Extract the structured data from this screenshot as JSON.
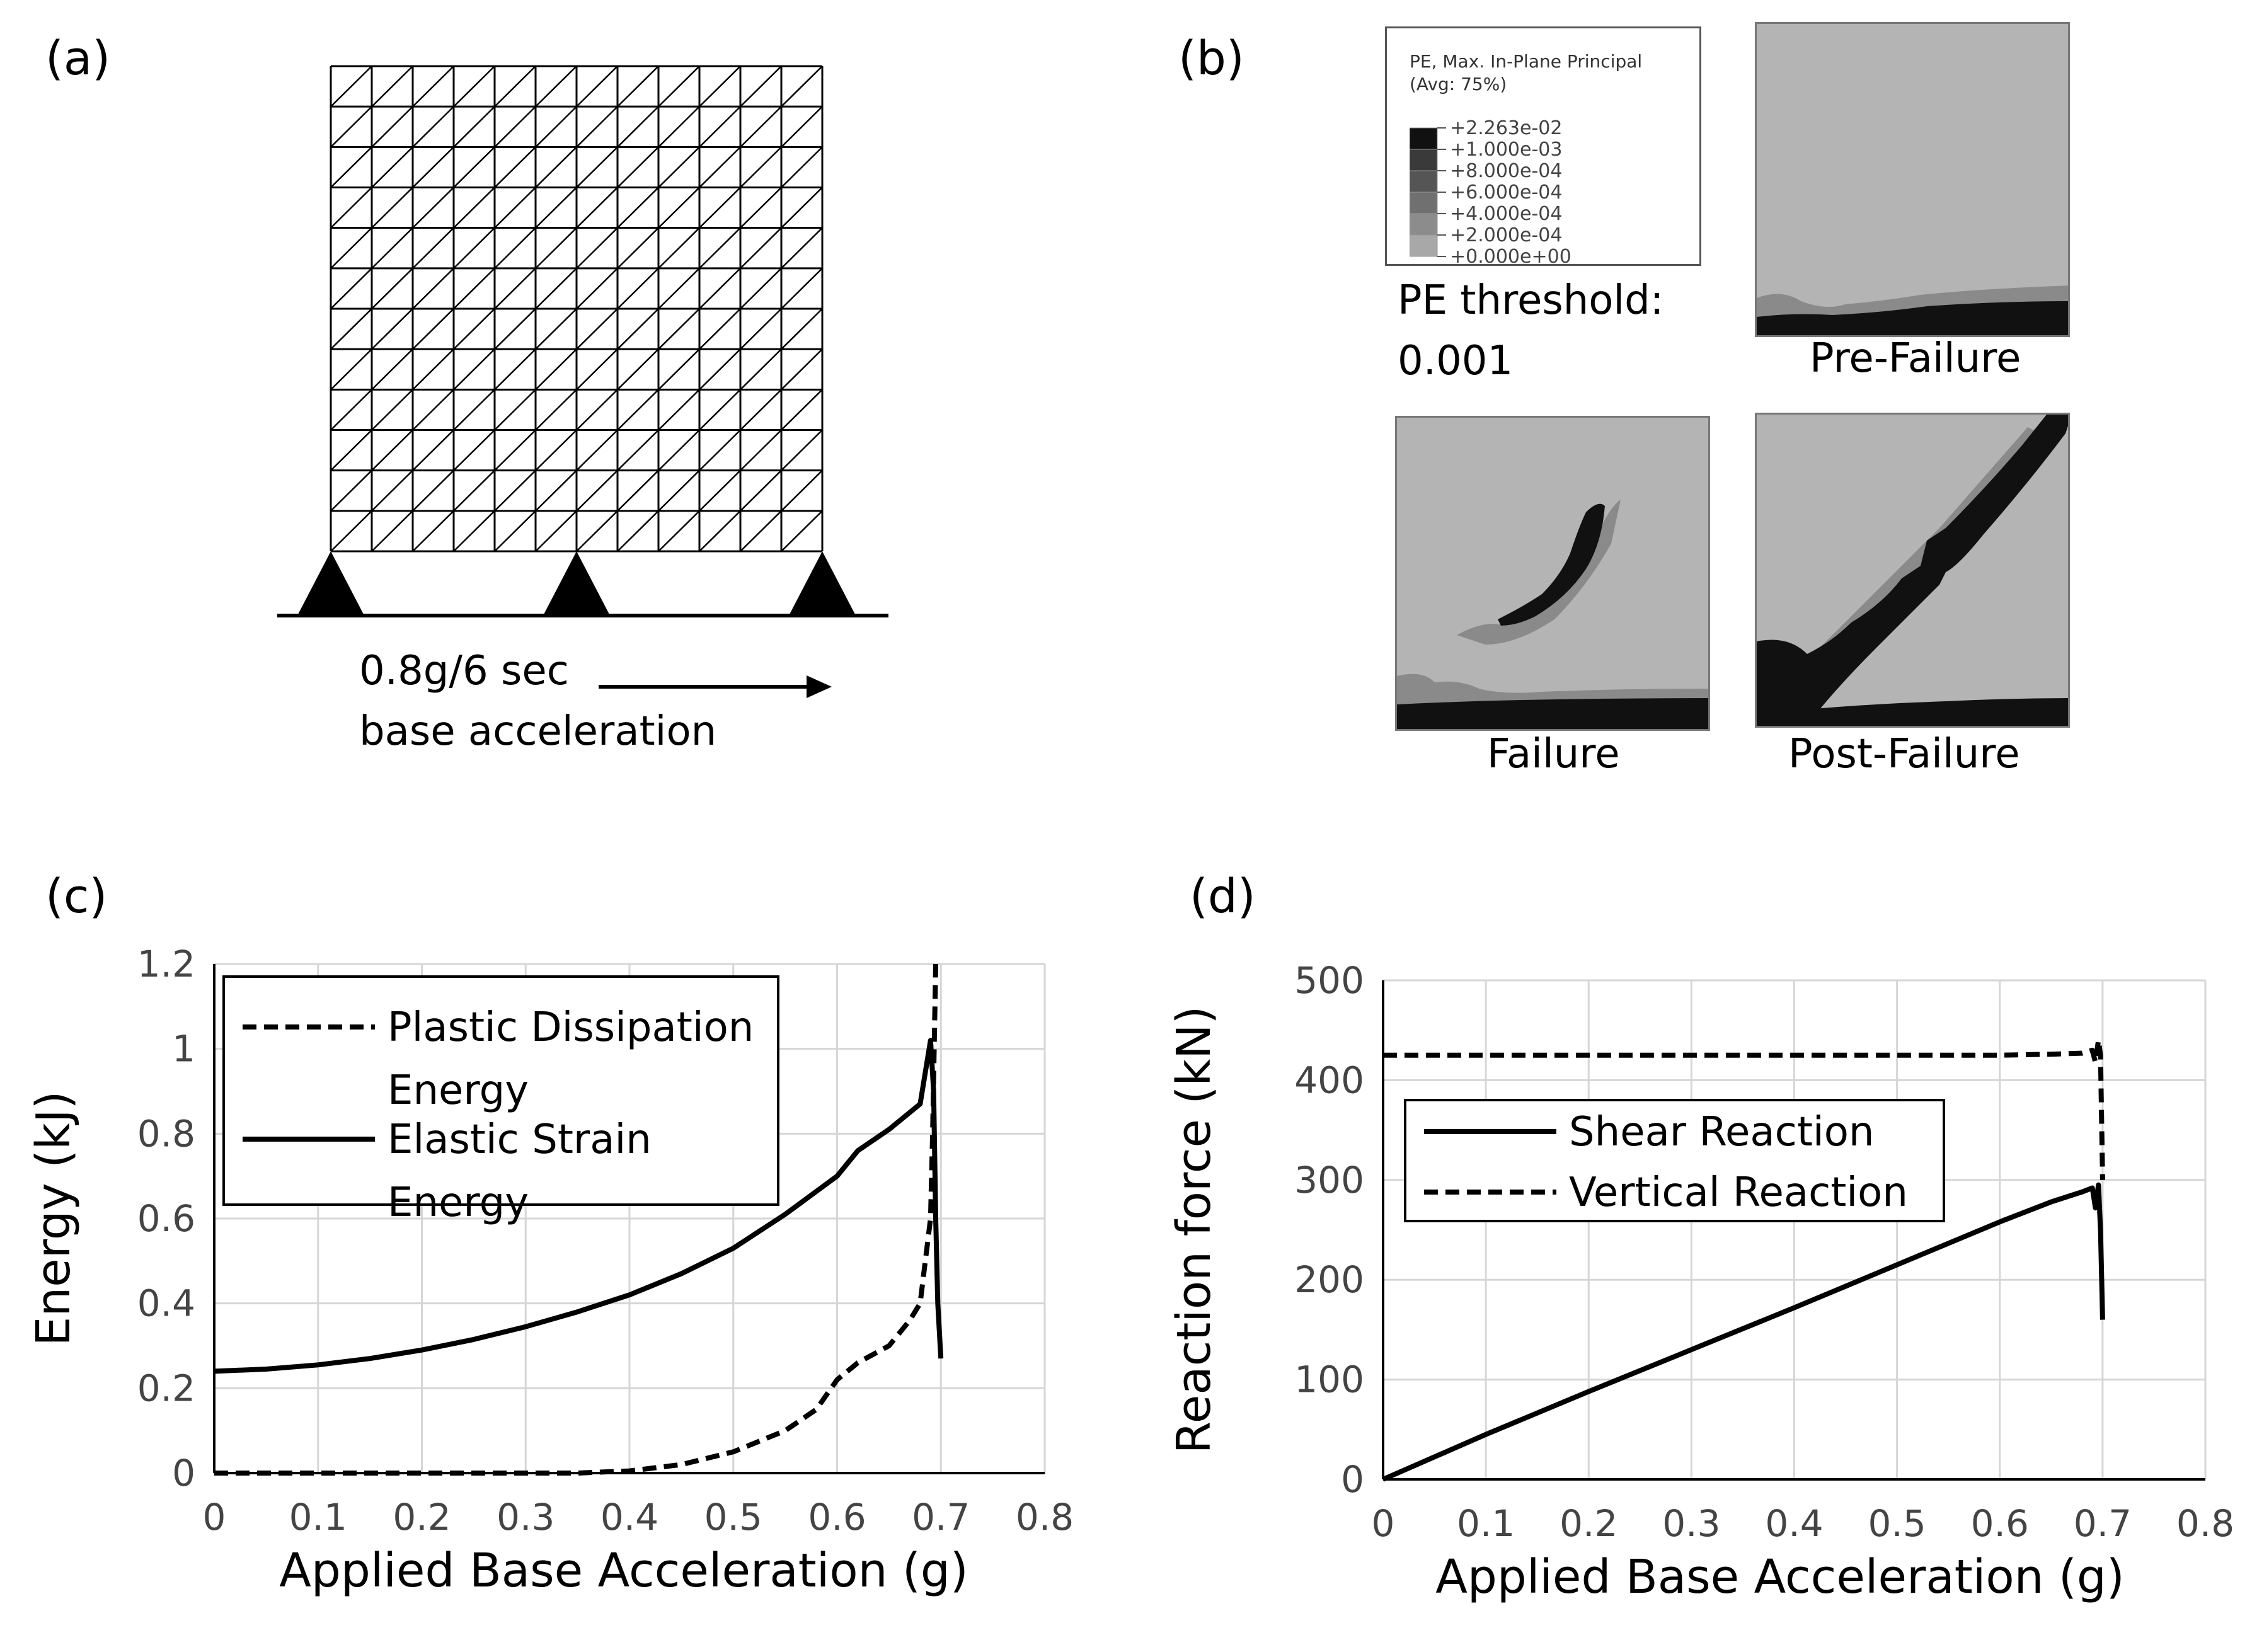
{
  "panels": {
    "a": {
      "label": "(a)",
      "load_line1": "0.8g/6 sec",
      "load_line2": "base acceleration",
      "mesh": {
        "cols": 12,
        "rows": 12,
        "supports": 3
      }
    },
    "b": {
      "label": "(b)",
      "legend_title_line1": "PE, Max. In-Plane Principal",
      "legend_title_line2": "(Avg: 75%)",
      "legend_values": [
        "+2.263e-02",
        "+1.000e-03",
        "+8.000e-04",
        "+6.000e-04",
        "+4.000e-04",
        "+2.000e-04",
        "+0.000e+00"
      ],
      "legend_colors": [
        "#111111",
        "#3a3a3a",
        "#555555",
        "#707070",
        "#8c8c8c",
        "#a8a8a8",
        "#c8c8c8"
      ],
      "threshold_label": "PE threshold:",
      "threshold_value": "0.001",
      "captions": {
        "pre": "Pre-Failure",
        "fail": "Failure",
        "post": "Post-Failure"
      }
    },
    "c": {
      "label": "(c)"
    },
    "d": {
      "label": "(d)"
    }
  },
  "chart_data": [
    {
      "id": "c",
      "type": "line",
      "title": "",
      "xlabel": "Applied Base Acceleration (g)",
      "ylabel": "Energy (kJ)",
      "xlim": [
        0,
        0.8
      ],
      "ylim": [
        0,
        1.2
      ],
      "xticks": [
        "0",
        "0.1",
        "0.2",
        "0.3",
        "0.4",
        "0.5",
        "0.6",
        "0.7",
        "0.8"
      ],
      "yticks": [
        "0",
        "0.2",
        "0.4",
        "0.6",
        "0.8",
        "1",
        "1.2"
      ],
      "grid": true,
      "legend": [
        {
          "line1": "Plastic Dissipation",
          "line2": "Energy",
          "style": "dashed"
        },
        {
          "line1": "Elastic Strain",
          "line2": "Energy",
          "style": "solid"
        }
      ],
      "series": [
        {
          "name": "Plastic Dissipation Energy",
          "style": "dashed",
          "x": [
            0,
            0.1,
            0.2,
            0.3,
            0.35,
            0.4,
            0.45,
            0.5,
            0.55,
            0.58,
            0.6,
            0.62,
            0.65,
            0.67,
            0.68,
            0.685,
            0.69,
            0.692,
            0.695
          ],
          "y": [
            0.0,
            0.0,
            0.0,
            0.0,
            0.0,
            0.005,
            0.02,
            0.05,
            0.1,
            0.15,
            0.22,
            0.26,
            0.3,
            0.36,
            0.4,
            0.5,
            0.6,
            0.8,
            1.2
          ]
        },
        {
          "name": "Elastic Strain Energy",
          "style": "solid",
          "x": [
            0,
            0.05,
            0.1,
            0.15,
            0.2,
            0.25,
            0.3,
            0.35,
            0.4,
            0.45,
            0.5,
            0.55,
            0.6,
            0.62,
            0.65,
            0.68,
            0.69,
            0.693,
            0.695,
            0.697,
            0.7
          ],
          "y": [
            0.24,
            0.245,
            0.255,
            0.27,
            0.29,
            0.315,
            0.345,
            0.38,
            0.42,
            0.47,
            0.53,
            0.61,
            0.7,
            0.76,
            0.81,
            0.87,
            1.02,
            0.9,
            0.6,
            0.4,
            0.27
          ]
        }
      ]
    },
    {
      "id": "d",
      "type": "line",
      "title": "",
      "xlabel": "Applied Base Acceleration (g)",
      "ylabel": "Reaction force (kN)",
      "xlim": [
        0,
        0.8
      ],
      "ylim": [
        0,
        500
      ],
      "xticks": [
        "0",
        "0.1",
        "0.2",
        "0.3",
        "0.4",
        "0.5",
        "0.6",
        "0.7",
        "0.8"
      ],
      "yticks": [
        "0",
        "100",
        "200",
        "300",
        "400",
        "500"
      ],
      "grid": true,
      "legend": [
        {
          "line1": "Shear Reaction",
          "style": "solid"
        },
        {
          "line1": "Vertical Reaction",
          "style": "dashed"
        }
      ],
      "series": [
        {
          "name": "Shear Reaction",
          "style": "solid",
          "x": [
            0,
            0.1,
            0.2,
            0.3,
            0.4,
            0.5,
            0.6,
            0.65,
            0.68,
            0.69,
            0.693,
            0.696,
            0.698,
            0.7
          ],
          "y": [
            0,
            45,
            88,
            130,
            172,
            215,
            258,
            278,
            288,
            292,
            272,
            295,
            250,
            160
          ]
        },
        {
          "name": "Vertical Reaction",
          "style": "dashed",
          "x": [
            0,
            0.1,
            0.2,
            0.3,
            0.4,
            0.5,
            0.6,
            0.65,
            0.68,
            0.69,
            0.693,
            0.696,
            0.698,
            0.7
          ],
          "y": [
            425,
            425,
            425,
            425,
            425,
            425,
            425,
            426,
            427,
            430,
            418,
            440,
            425,
            300
          ]
        }
      ]
    }
  ]
}
